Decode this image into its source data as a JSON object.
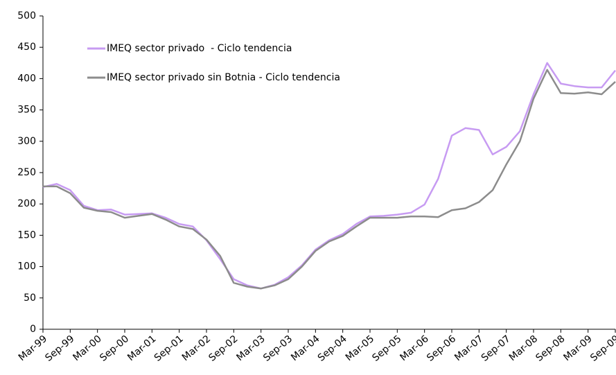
{
  "chart_data": {
    "type": "line",
    "categories": [
      "Mar-99",
      null,
      "Sep-99",
      null,
      "Mar-00",
      null,
      "Sep-00",
      null,
      "Mar-01",
      null,
      "Sep-01",
      null,
      "Mar-02",
      null,
      "Sep-02",
      null,
      "Mar-03",
      null,
      "Sep-03",
      null,
      "Mar-04",
      null,
      "Sep-04",
      null,
      "Mar-05",
      null,
      "Sep-05",
      null,
      "Mar-06",
      null,
      "Sep-06",
      null,
      "Mar-07",
      null,
      "Sep-07",
      null,
      "Mar-08",
      null,
      "Sep-08",
      null,
      "Mar-09",
      null,
      "Sep-09"
    ],
    "series": [
      {
        "name": "IMEQ sector privado  - Ciclo tendencia",
        "color": "#c79bf2",
        "values": [
          227,
          232,
          222,
          197,
          190,
          191,
          183,
          184,
          185,
          178,
          168,
          164,
          142,
          112,
          80,
          70,
          65,
          71,
          83,
          102,
          127,
          142,
          152,
          168,
          180,
          181,
          183,
          186,
          199,
          240,
          309,
          321,
          318,
          279,
          291,
          316,
          375,
          425,
          392,
          388,
          386,
          386,
          413
        ]
      },
      {
        "name": "IMEQ sector privado sin Botnia - Ciclo tendencia",
        "color": "#8c8c8c",
        "values": [
          228,
          228,
          217,
          194,
          189,
          187,
          178,
          181,
          184,
          175,
          164,
          160,
          143,
          117,
          74,
          68,
          65,
          70,
          80,
          100,
          125,
          140,
          149,
          164,
          178,
          178,
          178,
          180,
          180,
          179,
          190,
          193,
          203,
          222,
          263,
          300,
          368,
          414,
          377,
          376,
          378,
          375,
          395
        ]
      }
    ],
    "ylim": [
      0,
      500
    ],
    "yticks": [
      0,
      50,
      100,
      150,
      200,
      250,
      300,
      350,
      400,
      450,
      500
    ],
    "grid": false,
    "legend": "upper left"
  }
}
